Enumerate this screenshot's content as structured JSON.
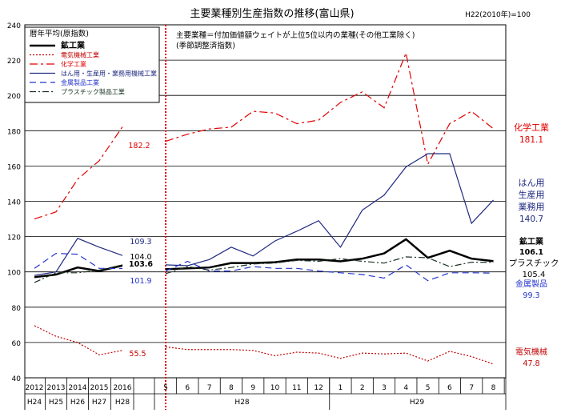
{
  "chart_data": {
    "type": "line",
    "title": "主要業種別生産指数の推移(富山県)",
    "base_note": "H22(2010年)=100",
    "note_lines": [
      "主要業種＝付加価値額ウェイトが上位5位以内の業種(その他工業除く)",
      "(季節調整済指数)"
    ],
    "legend_title": "暦年平均(原指数)",
    "legend_placement": "top-left",
    "ylim": [
      40,
      240
    ],
    "y_ticks": [
      40,
      60,
      80,
      100,
      120,
      140,
      160,
      180,
      200,
      220,
      240
    ],
    "grid": true,
    "annual": {
      "years": [
        "2012",
        "2013",
        "2014",
        "2015",
        "2016"
      ],
      "eras": [
        "H24",
        "H25",
        "H26",
        "H27",
        "H28"
      ]
    },
    "monthly": {
      "months": [
        "5",
        "6",
        "7",
        "8",
        "9",
        "10",
        "11",
        "12",
        "1",
        "2",
        "3",
        "4",
        "5",
        "6",
        "7",
        "8"
      ],
      "era_groups": [
        {
          "label": "H28",
          "from": 0,
          "to": 7
        },
        {
          "label": "H29",
          "from": 8,
          "to": 15
        }
      ]
    },
    "series": [
      {
        "name": "鉱工業",
        "color": "#000000",
        "dash": "",
        "width": 2.5,
        "annual_values": [
          97,
          98.5,
          102.5,
          100.5,
          103.6
        ],
        "monthly_values": [
          101.5,
          102,
          102.5,
          105,
          105,
          105.5,
          107,
          107,
          106,
          107.5,
          110.5,
          118.5,
          108,
          112,
          107.5,
          106.1
        ],
        "annual_label": "103.6",
        "end_label": [
          "106.1"
        ],
        "end_label_prefix": "鉱工業"
      },
      {
        "name": "電気機械工業",
        "color": "#c00000",
        "dash": "2,2",
        "width": 1.2,
        "annual_values": [
          69.5,
          63.5,
          60,
          53,
          55.5
        ],
        "monthly_values": [
          57.5,
          56,
          56,
          56,
          55.5,
          52.5,
          54.5,
          54,
          51,
          54,
          53.5,
          54,
          49.5,
          55,
          52,
          47.8
        ],
        "annual_label": "55.5",
        "end_label": [
          "47.8"
        ],
        "end_label_prefix": "電気機械"
      },
      {
        "name": "化学工業",
        "color": "#e00000",
        "dash": "10,4,3,4",
        "width": 1.2,
        "annual_values": [
          130,
          134,
          152.5,
          163,
          182.2
        ],
        "monthly_values": [
          174,
          178,
          181,
          182,
          191,
          190,
          184,
          186,
          196,
          202,
          193,
          224,
          161,
          184,
          191,
          181.1
        ],
        "annual_label": "182.2",
        "end_label": [
          "181.1"
        ],
        "end_label_prefix": "化学工業"
      },
      {
        "name": "はん用・生産用・業務用機械工業",
        "color": "#1f2a80",
        "dash": "",
        "width": 1.2,
        "annual_values": [
          98,
          100,
          119,
          114,
          109.3
        ],
        "monthly_values": [
          104,
          103.5,
          107,
          114,
          109,
          117.5,
          123,
          129,
          114,
          135,
          143.5,
          159.5,
          167,
          167,
          127.5,
          140.7
        ],
        "annual_label": "109.3",
        "end_label": [
          "140.7"
        ],
        "end_label_prefix": "はん用\n生産用\n業務用"
      },
      {
        "name": "金属製品工業",
        "color": "#2233cc",
        "dash": "8,5",
        "width": 1.2,
        "annual_values": [
          102,
          110.5,
          110,
          102,
          101.9
        ],
        "monthly_values": [
          100.5,
          106,
          100.5,
          100.5,
          103,
          102,
          102,
          100.5,
          99.5,
          98.5,
          96.5,
          104,
          95,
          99.5,
          99.5,
          99.3
        ],
        "annual_label": "101.9",
        "end_label": [
          "99.3"
        ],
        "end_label_prefix": "金属製品"
      },
      {
        "name": "プラスチック製品工業",
        "color": "#1a3322",
        "dash": "8,3,2,3",
        "width": 1.2,
        "annual_values": [
          94,
          99.5,
          99.5,
          101,
          104.0
        ],
        "monthly_values": [
          99,
          103,
          101,
          102.5,
          104.5,
          105,
          106.5,
          106,
          107.5,
          106,
          105,
          108.5,
          108,
          103,
          105.5,
          105.4
        ],
        "annual_label": "104.0",
        "end_label": [
          "105.4"
        ],
        "end_label_prefix": "プラスチック"
      }
    ]
  }
}
